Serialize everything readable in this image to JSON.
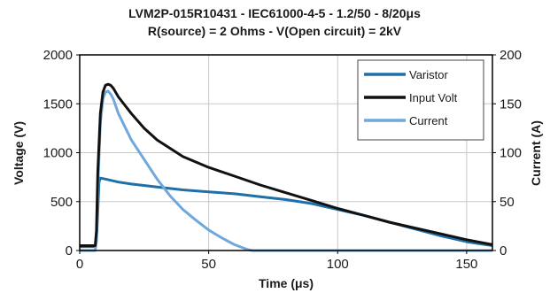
{
  "chart_data": {
    "type": "line",
    "title": "LVM2P-015R10431 - IEC61000-4-5 - 1.2/50 - 8/20μs",
    "subtitle": "R(source) = 2 Ohms - V(Open circuit) = 2kV",
    "xlabel": "Time (μs)",
    "ylabel": "Voltage (V)",
    "y2label": "Current (A)",
    "xlim": [
      0,
      160
    ],
    "ylim": [
      0,
      2000
    ],
    "y2lim": [
      0,
      200
    ],
    "xticks": [
      "0",
      "50",
      "100",
      "150"
    ],
    "yticks": [
      "0",
      "500",
      "1000",
      "1500",
      "2000"
    ],
    "y2ticks": [
      "0",
      "50",
      "100",
      "150",
      "200"
    ],
    "grid": true,
    "legend_position": "top-right",
    "series": [
      {
        "name": "Varistor",
        "axis": "left",
        "color": "#1f6fa8",
        "x": [
          0,
          6,
          6.5,
          7,
          7.5,
          8,
          10,
          15,
          20,
          30,
          40,
          50,
          60,
          70,
          80,
          90,
          100,
          110,
          120,
          130,
          140,
          150,
          160
        ],
        "y": [
          40,
          40,
          100,
          400,
          700,
          740,
          730,
          700,
          680,
          650,
          620,
          600,
          580,
          550,
          520,
          480,
          420,
          360,
          290,
          220,
          150,
          90,
          50
        ]
      },
      {
        "name": "Input Volt",
        "axis": "left",
        "color": "#111111",
        "x": [
          0,
          6,
          6.5,
          7,
          8,
          9,
          10,
          11,
          12,
          13,
          15,
          20,
          25,
          30,
          40,
          50,
          60,
          70,
          80,
          90,
          100,
          110,
          120,
          130,
          140,
          150,
          160
        ],
        "y": [
          50,
          50,
          200,
          800,
          1400,
          1620,
          1690,
          1700,
          1690,
          1660,
          1570,
          1400,
          1250,
          1130,
          960,
          850,
          760,
          670,
          590,
          510,
          430,
          360,
          290,
          230,
          170,
          110,
          60
        ]
      },
      {
        "name": "Current",
        "axis": "right",
        "color": "#6fa8dc",
        "x": [
          0,
          6,
          6.5,
          7,
          8,
          9,
          10,
          11,
          12,
          13,
          15,
          20,
          25,
          30,
          35,
          40,
          45,
          50,
          55,
          60,
          65,
          67,
          70,
          80,
          100,
          120,
          140,
          160
        ],
        "y": [
          0,
          0,
          10,
          60,
          130,
          155,
          162,
          163,
          160,
          155,
          140,
          113,
          93,
          73,
          56,
          42,
          31,
          21,
          13,
          6,
          1,
          0,
          0,
          0,
          0,
          0,
          0,
          0
        ]
      }
    ]
  }
}
